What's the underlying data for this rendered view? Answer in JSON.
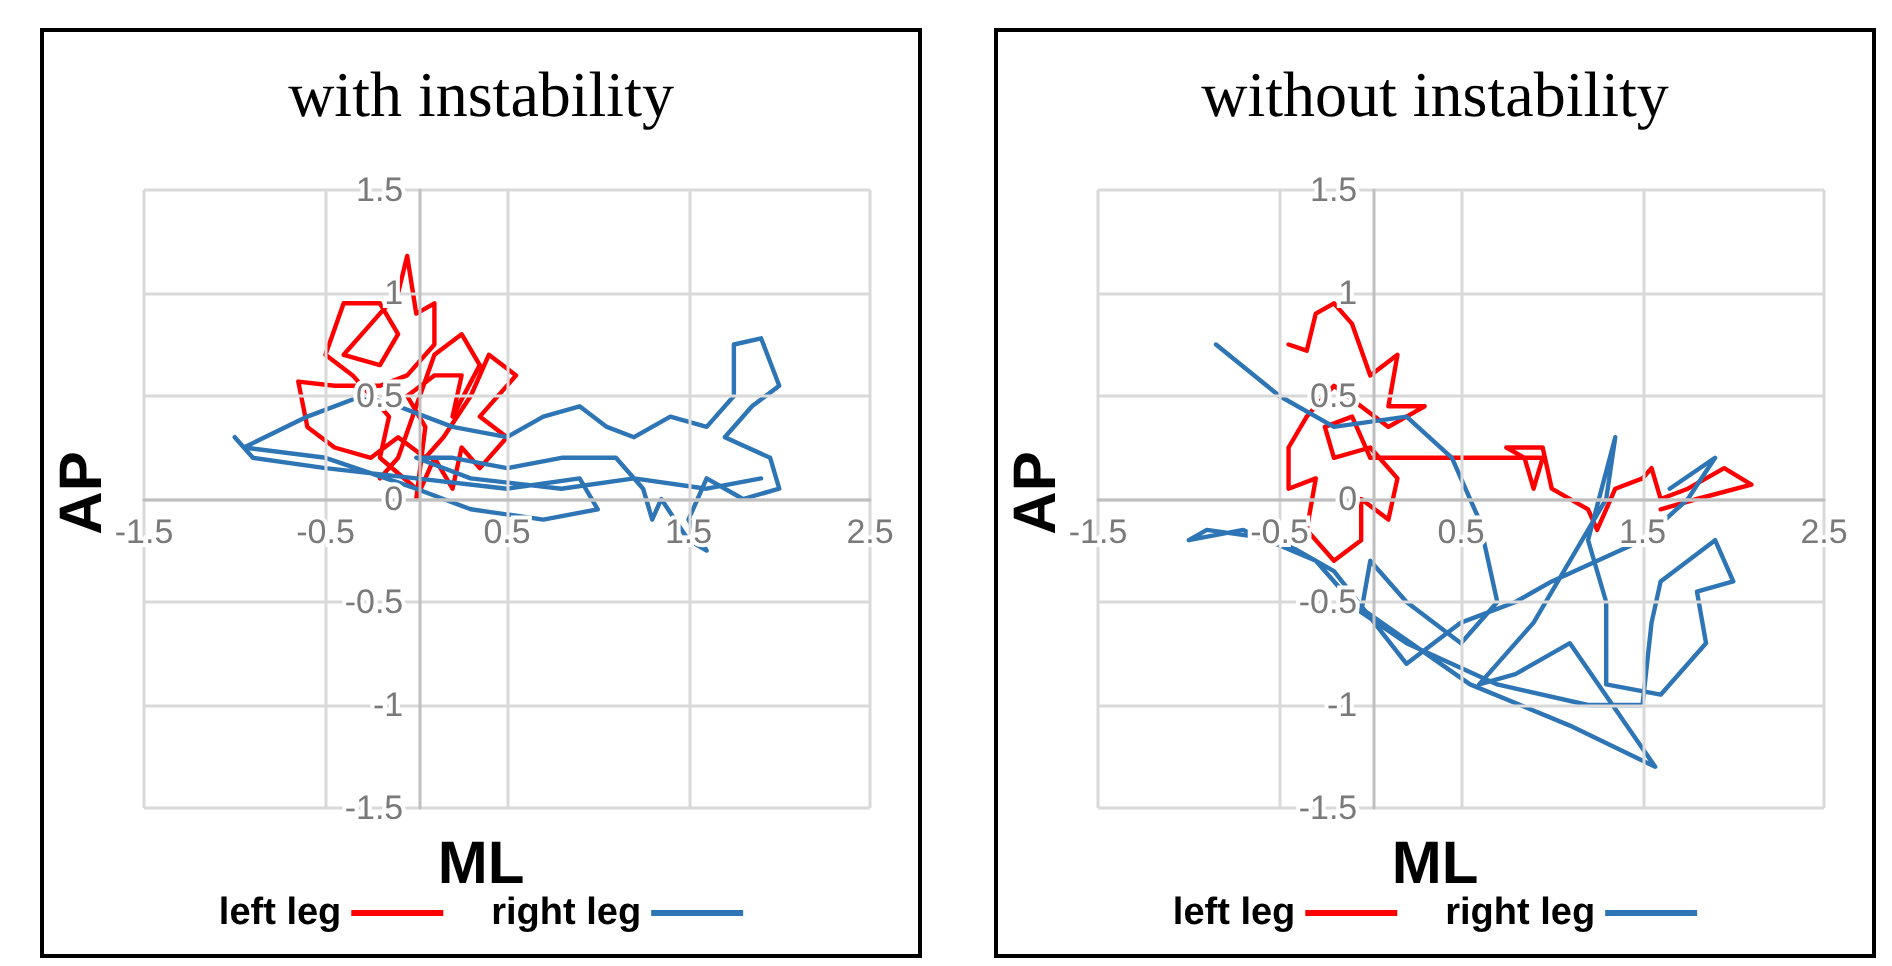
{
  "chart_data": [
    {
      "type": "line",
      "title": "with instability",
      "xlabel": "ML",
      "ylabel": "AP",
      "xlim": [
        -1.5,
        2.5
      ],
      "xticks": [
        -1.5,
        -0.5,
        0.5,
        1.5,
        2.5
      ],
      "ylim": [
        -1.5,
        1.5
      ],
      "yticks": [
        -1.5,
        -1,
        -0.5,
        0,
        0.5,
        1,
        1.5
      ],
      "grid": true,
      "legend": "bottom",
      "marker": "none",
      "line_style": "solid",
      "series": [
        {
          "name": "left leg",
          "color": "#ff0000",
          "x": [
            0.0,
            -0.2,
            -0.15,
            -0.35,
            -0.5,
            -0.4,
            -0.2,
            -0.1,
            -0.2,
            -0.4,
            -0.25,
            -0.1,
            -0.05,
            0.0,
            0.1,
            0.1,
            -0.05,
            -0.2,
            -0.45,
            -0.65,
            -0.6,
            -0.45,
            -0.25,
            -0.1,
            0.05,
            0.15,
            0.3,
            0.4,
            0.55,
            0.35,
            0.5,
            0.35,
            0.25,
            0.2,
            0.1,
            0.0,
            0.05,
            -0.05,
            0.1,
            0.25,
            0.2,
            0.35,
            0.25,
            0.1,
            0.0,
            -0.1,
            -0.2
          ],
          "values": [
            0.05,
            0.2,
            0.4,
            0.6,
            0.7,
            0.95,
            0.95,
            0.8,
            0.65,
            0.7,
            0.85,
            1.0,
            1.18,
            0.9,
            0.95,
            0.75,
            0.6,
            0.55,
            0.55,
            0.57,
            0.35,
            0.25,
            0.2,
            0.3,
            0.2,
            0.3,
            0.5,
            0.7,
            0.6,
            0.4,
            0.3,
            0.15,
            0.25,
            0.05,
            0.2,
            0.0,
            0.35,
            0.5,
            0.6,
            0.6,
            0.4,
            0.65,
            0.8,
            0.7,
            0.45,
            0.2,
            0.1
          ]
        },
        {
          "name": "right leg",
          "color": "#2e75b6",
          "x": [
            -1.0,
            -0.9,
            -0.5,
            0.0,
            0.5,
            0.9,
            1.0,
            0.7,
            0.3,
            0.0,
            -0.5,
            -0.95,
            -0.6,
            -0.3,
            -0.1,
            0.2,
            0.5,
            0.7,
            0.9,
            1.05,
            1.2,
            1.4,
            1.6,
            1.75,
            1.75,
            1.9,
            2.0,
            1.85,
            1.7,
            1.95,
            2.0,
            1.8,
            1.6,
            1.5,
            1.6,
            1.5,
            1.35,
            1.3,
            1.25,
            1.1,
            0.8,
            0.5,
            0.2,
            0.0,
            0.3,
            0.8,
            1.2,
            1.6,
            1.9
          ],
          "values": [
            0.3,
            0.2,
            0.15,
            0.1,
            0.05,
            0.1,
            -0.05,
            -0.1,
            -0.05,
            0.05,
            0.2,
            0.25,
            0.4,
            0.5,
            0.45,
            0.35,
            0.3,
            0.4,
            0.45,
            0.35,
            0.3,
            0.4,
            0.35,
            0.5,
            0.75,
            0.78,
            0.55,
            0.45,
            0.3,
            0.2,
            0.05,
            0.0,
            0.1,
            -0.1,
            -0.25,
            -0.2,
            0.0,
            -0.1,
            0.05,
            0.2,
            0.2,
            0.15,
            0.2,
            0.2,
            0.1,
            0.05,
            0.1,
            0.05,
            0.1
          ]
        }
      ]
    },
    {
      "type": "line",
      "title": "without instability",
      "xlabel": "ML",
      "ylabel": "AP",
      "xlim": [
        -1.5,
        2.5
      ],
      "xticks": [
        -1.5,
        -0.5,
        0.5,
        1.5,
        2.5
      ],
      "ylim": [
        -1.5,
        1.5
      ],
      "yticks": [
        -1.5,
        -1,
        -0.5,
        0,
        0.5,
        1,
        1.5
      ],
      "grid": true,
      "legend": "bottom",
      "marker": "none",
      "line_style": "solid",
      "series": [
        {
          "name": "left leg",
          "color": "#ff0000",
          "x": [
            -0.45,
            -0.35,
            -0.3,
            -0.2,
            -0.1,
            0.0,
            0.15,
            0.1,
            0.3,
            0.1,
            -0.2,
            -0.35,
            -0.45,
            -0.45,
            -0.3,
            -0.35,
            -0.2,
            -0.05,
            -0.05,
            0.1,
            0.15,
            0.0,
            -0.2,
            -0.25,
            -0.1,
            0.0,
            0.15,
            0.5,
            0.95,
            0.9,
            0.85,
            0.75,
            0.95,
            1.0,
            1.2,
            1.25,
            1.35,
            1.5,
            1.55,
            1.6,
            1.75,
            1.85,
            1.95,
            2.1,
            1.8,
            1.6
          ],
          "values": [
            0.75,
            0.72,
            0.9,
            0.95,
            0.85,
            0.6,
            0.7,
            0.45,
            0.45,
            0.35,
            0.55,
            0.4,
            0.25,
            0.05,
            0.1,
            -0.15,
            -0.3,
            -0.2,
            0.0,
            -0.1,
            0.1,
            0.25,
            0.2,
            0.35,
            0.4,
            0.2,
            0.2,
            0.2,
            0.2,
            0.05,
            0.2,
            0.25,
            0.25,
            0.05,
            -0.05,
            -0.15,
            0.05,
            0.1,
            0.15,
            0.0,
            0.05,
            0.1,
            0.15,
            0.07,
            0.0,
            -0.05
          ]
        },
        {
          "name": "right leg",
          "color": "#2e75b6",
          "x": [
            -0.85,
            -0.5,
            -0.2,
            0.2,
            0.45,
            0.6,
            0.7,
            0.5,
            0.2,
            0.0,
            -0.05,
            0.2,
            0.7,
            1.2,
            1.5,
            1.55,
            1.6,
            1.9,
            2.0,
            1.8,
            1.85,
            1.6,
            1.3,
            1.3,
            1.2,
            1.35,
            1.3,
            1.1,
            0.9,
            0.6,
            0.8,
            1.1,
            1.57,
            1.1,
            0.55,
            -0.1,
            -0.3,
            -0.7,
            -1.0,
            -0.9,
            -0.5,
            -0.2,
            0.2,
            0.5,
            0.8,
            1.0,
            1.5,
            1.75,
            1.9,
            1.65
          ],
          "values": [
            0.75,
            0.5,
            0.35,
            0.4,
            0.2,
            -0.1,
            -0.5,
            -0.7,
            -0.5,
            -0.3,
            -0.55,
            -0.7,
            -0.9,
            -1.0,
            -1.0,
            -0.6,
            -0.4,
            -0.2,
            -0.4,
            -0.45,
            -0.7,
            -0.95,
            -0.9,
            -0.5,
            -0.2,
            0.3,
            0.0,
            -0.3,
            -0.6,
            -0.9,
            -0.85,
            -0.7,
            -1.3,
            -1.1,
            -0.9,
            -0.5,
            -0.3,
            -0.15,
            -0.2,
            -0.15,
            -0.2,
            -0.35,
            -0.8,
            -0.6,
            -0.5,
            -0.4,
            -0.2,
            0.0,
            0.2,
            0.05
          ]
        }
      ]
    }
  ]
}
